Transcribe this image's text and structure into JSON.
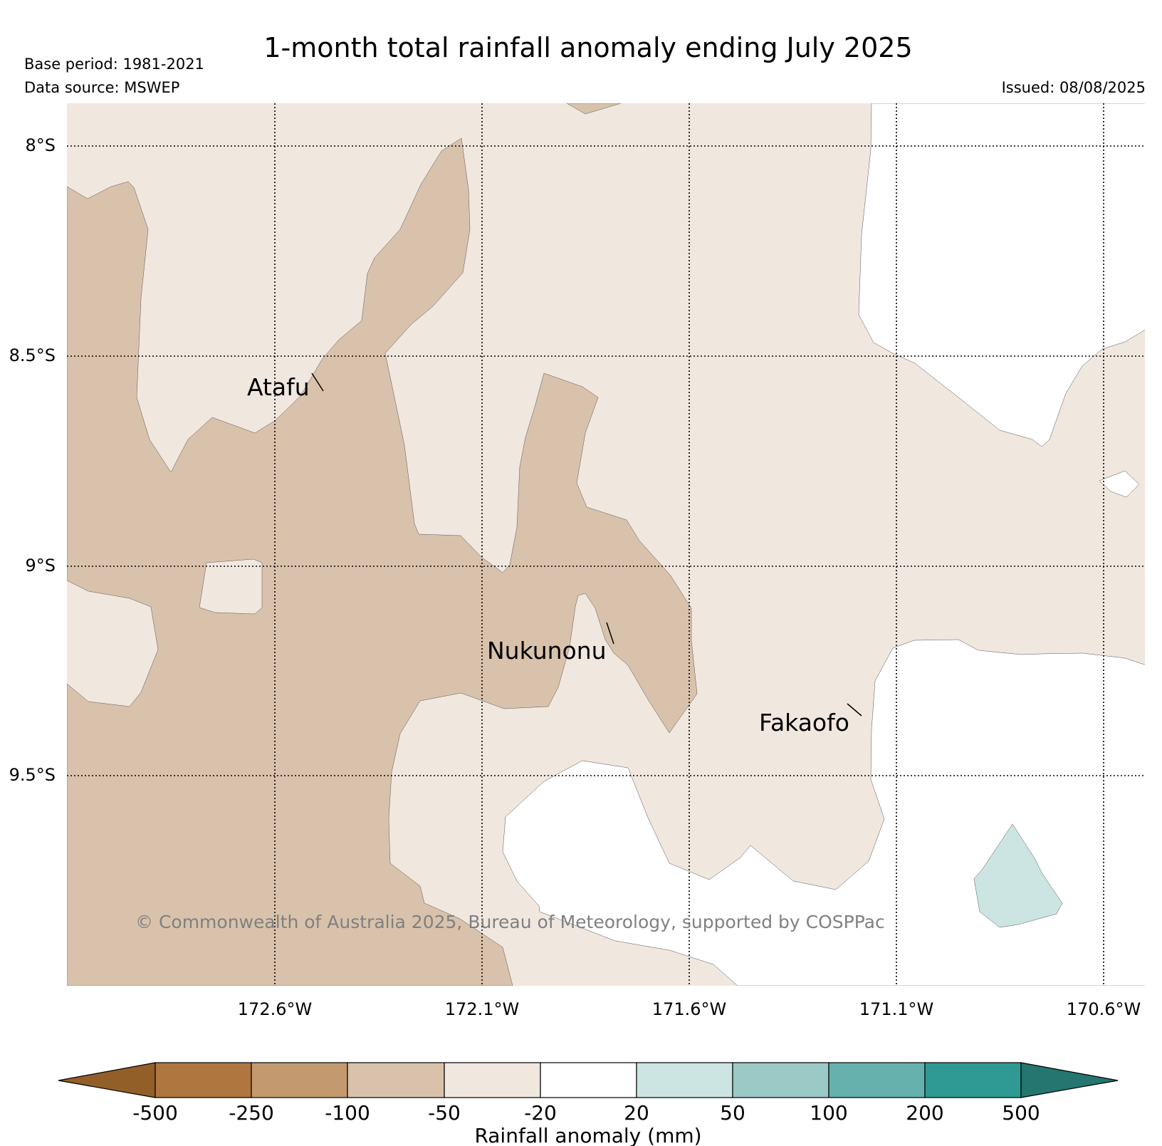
{
  "title": "1-month total rainfall anomaly ending July 2025",
  "base_period": "Base period: 1981-2021",
  "data_source": "Data source: MSWEP",
  "issued": "Issued: 08/08/2025",
  "map": {
    "lat_labels": [
      "8°S",
      "8.5°S",
      "9°S",
      "9.5°S"
    ],
    "lon_labels": [
      "172.6°W",
      "172.1°W",
      "171.6°W",
      "171.1°W",
      "170.6°W"
    ],
    "places": [
      {
        "name": "Atafu"
      },
      {
        "name": "Nukunonu"
      },
      {
        "name": "Fakaofo"
      }
    ],
    "copyright": "© Commonwealth of Australia 2025, Bureau of Meteorology, supported by COSPPac"
  },
  "colorbar": {
    "label": "Rainfall anomaly (mm)",
    "ticks": [
      "-500",
      "-250",
      "-100",
      "-50",
      "-20",
      "20",
      "50",
      "100",
      "200",
      "500"
    ],
    "colors": [
      "#935f29",
      "#af773f",
      "#c39a70",
      "#d9c2ab",
      "#f0e7df",
      "#ffffff",
      "#cce5e3",
      "#9ac9c6",
      "#66b1ae",
      "#2f9993",
      "#257670"
    ]
  },
  "colors": {
    "dry_50_100": "#d9c2ab",
    "dry_20_50": "#f0e7df",
    "normal": "#ffffff",
    "wet_20_50": "#cce5e3"
  }
}
